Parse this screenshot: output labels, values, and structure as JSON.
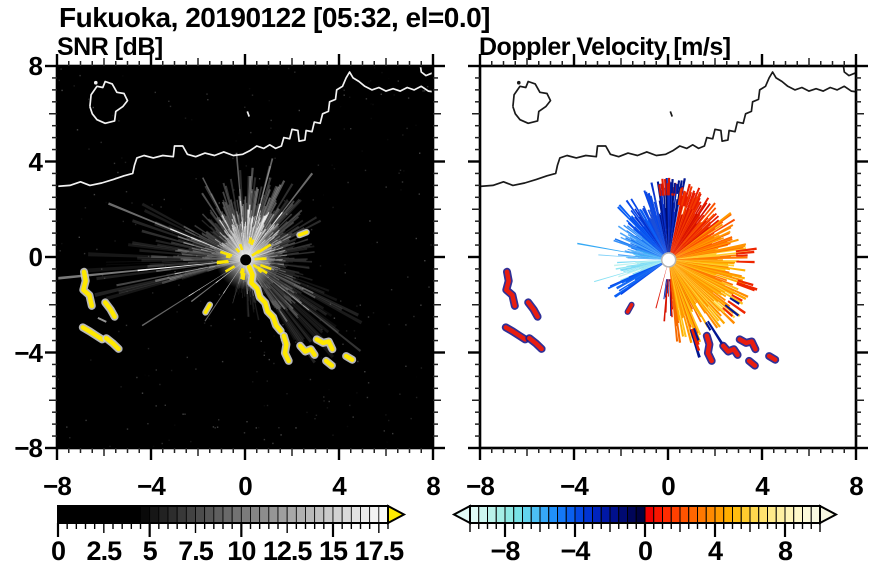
{
  "chart_data": {
    "type": "heatmap",
    "title": "Fukuoka, 20190122 [05:32, el=0.0]",
    "station": "Fukuoka",
    "date": "20190122",
    "time": "05:32",
    "elevation_label": "el=0.0",
    "x_range": [
      -8,
      8
    ],
    "y_range": [
      -8,
      8
    ],
    "axis_tick_values": [
      -8,
      -4,
      0,
      4,
      8
    ],
    "axis_tick_labels": [
      "−8",
      "−4",
      "0",
      "4",
      "8"
    ],
    "radar_center": [
      0.03,
      -0.12
    ],
    "panels": [
      {
        "key": "snr",
        "title": "SNR [dB]",
        "background": "#000000",
        "coast_color": "#f2f2f2",
        "colorbar": {
          "min": 0,
          "max": 18,
          "cell_width": 0.5,
          "tick_values": [
            0,
            2.5,
            5,
            7.5,
            10,
            12.5,
            15,
            17.5
          ],
          "tick_labels": [
            "0",
            "2.5",
            "5",
            "7.5",
            "10",
            "12.5",
            "15",
            "17.5"
          ],
          "style": "grayscale",
          "black_until": 4.5,
          "overflow_arrow_color": "#ffec00"
        }
      },
      {
        "key": "vel",
        "title": "Doppler Velocity [m/s]",
        "background": "#ffffff",
        "coast_color": "#1a1a1a",
        "colorbar": {
          "min": -10,
          "max": 10,
          "cell_width": 0.5,
          "tick_values": [
            -8,
            -4,
            0,
            4,
            8
          ],
          "tick_labels": [
            "−8",
            "−4",
            "0",
            "4",
            "8"
          ],
          "style": "diverging",
          "colors": [
            "#e0faf6",
            "#cdf6f0",
            "#baf2ea",
            "#a5eee6",
            "#8fe9e4",
            "#78e2e6",
            "#62d4ee",
            "#4cc0f4",
            "#36a8f8",
            "#2090fa",
            "#1478f6",
            "#0a60ee",
            "#0448e2",
            "#0134d2",
            "#0024be",
            "#0018a6",
            "#00108c",
            "#000a72",
            "#000558",
            "#000240",
            "#ee0000",
            "#f81600",
            "#ff2c00",
            "#ff4000",
            "#ff5400",
            "#ff6600",
            "#ff7800",
            "#ff8a00",
            "#ff9c00",
            "#ffae00",
            "#ffbe10",
            "#ffcc2e",
            "#ffd84e",
            "#ffe26e",
            "#ffea8a",
            "#fff0a2",
            "#fff5b8",
            "#fff9ca",
            "#fcfada",
            "#f8f8e0"
          ]
        }
      }
    ],
    "coastline": {
      "main": [
        [
          8.15,
          6.9
        ],
        [
          7.8,
          6.95
        ],
        [
          7.5,
          7.15
        ],
        [
          7.2,
          7.0
        ],
        [
          6.9,
          7.1
        ],
        [
          6.6,
          6.95
        ],
        [
          6.3,
          7.05
        ],
        [
          6.0,
          6.95
        ],
        [
          5.7,
          7.1
        ],
        [
          5.4,
          7.0
        ],
        [
          5.1,
          7.15
        ],
        [
          4.85,
          7.35
        ],
        [
          4.6,
          7.5
        ],
        [
          4.45,
          7.75
        ],
        [
          4.3,
          7.5
        ],
        [
          4.15,
          7.15
        ],
        [
          3.9,
          7.0
        ],
        [
          3.85,
          6.6
        ],
        [
          3.6,
          6.5
        ],
        [
          3.55,
          6.1
        ],
        [
          3.3,
          6.0
        ],
        [
          3.2,
          5.6
        ],
        [
          2.95,
          5.65
        ],
        [
          2.85,
          5.25
        ],
        [
          2.6,
          5.3
        ],
        [
          2.55,
          4.9
        ],
        [
          2.3,
          4.85
        ],
        [
          2.25,
          5.3
        ],
        [
          2.0,
          5.35
        ],
        [
          1.9,
          4.95
        ],
        [
          1.65,
          5.0
        ],
        [
          1.55,
          4.65
        ],
        [
          1.3,
          4.55
        ],
        [
          1.05,
          4.7
        ],
        [
          0.8,
          4.55
        ],
        [
          0.5,
          4.65
        ],
        [
          0.2,
          4.45
        ],
        [
          -0.1,
          4.3
        ],
        [
          -0.5,
          4.25
        ],
        [
          -0.9,
          4.4
        ],
        [
          -1.3,
          4.25
        ],
        [
          -1.7,
          4.35
        ],
        [
          -2.1,
          4.2
        ],
        [
          -2.45,
          4.3
        ],
        [
          -2.65,
          4.65
        ],
        [
          -3.0,
          4.65
        ],
        [
          -3.05,
          4.2
        ],
        [
          -3.5,
          4.25
        ],
        [
          -3.9,
          4.15
        ],
        [
          -4.3,
          4.25
        ],
        [
          -4.6,
          4.15
        ],
        [
          -4.7,
          3.85
        ],
        [
          -4.78,
          3.5
        ],
        [
          -5.15,
          3.4
        ],
        [
          -5.6,
          3.25
        ],
        [
          -6.1,
          3.1
        ],
        [
          -6.6,
          3.0
        ],
        [
          -7.0,
          3.15
        ],
        [
          -7.45,
          3.0
        ],
        [
          -8.15,
          2.95
        ]
      ],
      "island": [
        [
          -6.6,
          6.3
        ],
        [
          -6.55,
          6.8
        ],
        [
          -6.3,
          7.15
        ],
        [
          -6.05,
          7.1
        ],
        [
          -5.95,
          7.35
        ],
        [
          -5.65,
          7.25
        ],
        [
          -5.45,
          6.9
        ],
        [
          -5.15,
          6.85
        ],
        [
          -5.0,
          6.55
        ],
        [
          -5.2,
          6.3
        ],
        [
          -5.5,
          6.1
        ],
        [
          -5.55,
          5.7
        ],
        [
          -5.95,
          5.6
        ],
        [
          -6.3,
          5.75
        ],
        [
          -6.5,
          6.0
        ],
        [
          -6.6,
          6.3
        ]
      ],
      "ne_piers": [
        [
          7.45,
          8.1
        ],
        [
          7.5,
          7.75
        ],
        [
          7.7,
          7.6
        ],
        [
          7.95,
          7.7
        ],
        [
          8.1,
          7.55
        ]
      ],
      "islet": [
        -6.35,
        7.3
      ],
      "mark": [
        [
          0.1,
          6.1
        ],
        [
          0.18,
          5.88
        ]
      ]
    },
    "clutter": {
      "west_blobs": [
        [
          [
            -6.85,
            -0.62
          ],
          [
            -6.78,
            -1.0
          ],
          [
            -6.88,
            -1.38
          ],
          [
            -6.62,
            -1.6
          ],
          [
            -6.52,
            -2.05
          ]
        ],
        [
          [
            -5.95,
            -1.9
          ],
          [
            -5.72,
            -2.2
          ],
          [
            -5.55,
            -2.5
          ]
        ],
        [
          [
            -6.9,
            -2.95
          ],
          [
            -6.6,
            -3.12
          ],
          [
            -6.32,
            -3.3
          ],
          [
            -6.08,
            -3.45
          ]
        ],
        [
          [
            -5.9,
            -3.4
          ],
          [
            -5.62,
            -3.62
          ],
          [
            -5.38,
            -3.85
          ]
        ]
      ],
      "south_blobs": [
        [
          [
            1.65,
            -3.3
          ],
          [
            1.76,
            -3.66
          ],
          [
            1.7,
            -4.02
          ],
          [
            1.86,
            -4.35
          ]
        ],
        [
          [
            2.35,
            -3.72
          ],
          [
            2.56,
            -3.96
          ],
          [
            2.8,
            -3.86
          ],
          [
            2.96,
            -4.1
          ]
        ],
        [
          [
            3.05,
            -3.45
          ],
          [
            3.32,
            -3.6
          ],
          [
            3.56,
            -3.54
          ],
          [
            3.72,
            -3.86
          ]
        ],
        [
          [
            3.45,
            -4.35
          ],
          [
            3.7,
            -4.55
          ]
        ],
        [
          [
            4.3,
            -4.15
          ],
          [
            4.56,
            -4.3
          ]
        ]
      ],
      "coast_trail_snr": [
        [
          0.18,
          -0.42
        ],
        [
          0.32,
          -0.75
        ],
        [
          0.27,
          -1.08
        ],
        [
          0.52,
          -1.32
        ],
        [
          0.62,
          -1.68
        ],
        [
          0.86,
          -1.92
        ],
        [
          0.96,
          -2.28
        ],
        [
          1.2,
          -2.52
        ],
        [
          1.32,
          -2.86
        ],
        [
          1.52,
          -3.1
        ]
      ],
      "snr_dashes": [
        [
          [
            2.32,
            0.92
          ],
          [
            2.62,
            1.04
          ]
        ],
        [
          [
            -1.5,
            -2.0
          ],
          [
            -1.68,
            -2.32
          ]
        ]
      ],
      "snr_gray_dash": [
        [
          -6.26,
          -2.55
        ],
        [
          -5.9,
          -2.72
        ]
      ],
      "vel_dashes": [
        [
          [
            -1.55,
            -2.0
          ],
          [
            -1.72,
            -2.3
          ]
        ]
      ]
    },
    "snr_field": {
      "wedges": [
        {
          "a0": -110,
          "a1": -88,
          "rmin": 0.8,
          "rmax": 1.8,
          "op": 0.22
        },
        {
          "a0": -88,
          "a1": -58,
          "rmin": 1.2,
          "rmax": 2.6,
          "op": 0.34
        },
        {
          "a0": -58,
          "a1": -20,
          "rmin": 2.2,
          "rmax": 5.6,
          "op": 0.26
        },
        {
          "a0": -20,
          "a1": 18,
          "rmin": 1.5,
          "rmax": 3.0,
          "op": 0.38
        },
        {
          "a0": 18,
          "a1": 58,
          "rmin": 1.8,
          "rmax": 3.6,
          "op": 0.55
        },
        {
          "a0": 58,
          "a1": 96,
          "rmin": 2.2,
          "rmax": 4.3,
          "op": 0.75
        },
        {
          "a0": 96,
          "a1": 128,
          "rmin": 1.9,
          "rmax": 3.6,
          "op": 0.65
        },
        {
          "a0": 128,
          "a1": 152,
          "rmin": 1.6,
          "rmax": 3.0,
          "op": 0.5
        },
        {
          "a0": 152,
          "a1": 178,
          "rmin": 2.0,
          "rmax": 5.2,
          "op": 0.36
        },
        {
          "a0": 178,
          "a1": 197,
          "rmin": 2.6,
          "rmax": 7.2,
          "op": 0.3
        }
      ],
      "rays": [
        {
          "a": 158,
          "r": 6.3,
          "w": 0.9,
          "op": 0.85
        },
        {
          "a": 185.5,
          "r": 8.4,
          "w": 0.8,
          "op": 0.95
        },
        {
          "a": 191,
          "r": 5.6,
          "w": 0.9,
          "op": 0.55
        },
        {
          "a": 212,
          "r": 5.2,
          "w": 0.7,
          "op": 0.8
        },
        {
          "a": 217,
          "r": 2.9,
          "w": 1.1,
          "op": 0.9
        },
        {
          "a": 236,
          "r": 3.1,
          "w": 0.9,
          "op": 0.8
        },
        {
          "a": 253,
          "r": 1.9,
          "w": 1.0,
          "op": 0.45
        },
        {
          "a": -38,
          "r": 6.2,
          "w": 0.9,
          "op": 0.4
        },
        {
          "a": 52,
          "r": 4.6,
          "w": 1.2,
          "op": 0.85
        },
        {
          "a": 75,
          "r": 4.4,
          "w": 1.0,
          "op": 0.8
        },
        {
          "a": 95,
          "r": 4.5,
          "w": 1.0,
          "op": 0.75
        },
        {
          "a": 118,
          "r": 3.9,
          "w": 1.0,
          "op": 0.7
        }
      ],
      "dark_rays": [
        {
          "a": 188.3,
          "w": 1.3,
          "r": 8.5
        },
        {
          "a": 181.5,
          "w": 0.9,
          "r": 8.5
        }
      ]
    },
    "vel_field": {
      "wedges": [
        {
          "a0": 80,
          "a1": 103,
          "rmin": 1.9,
          "rmax": 3.5,
          "colors": [
            "#000d6e",
            "#001692",
            "#0423b4",
            "#0a33cc"
          ]
        },
        {
          "a0": 103,
          "a1": 140,
          "rmin": 1.7,
          "rmax": 3.2,
          "colors": [
            "#0330cf",
            "#0747e8",
            "#0b5ff5",
            "#1b4fd8"
          ]
        },
        {
          "a0": 140,
          "a1": 163,
          "rmin": 1.4,
          "rmax": 2.7,
          "colors": [
            "#1a75f2",
            "#348ff7",
            "#4fa6fa"
          ]
        },
        {
          "a0": 163,
          "a1": 178,
          "rmin": 1.0,
          "rmax": 2.2,
          "colors": [
            "#4fa6fa",
            "#35b9f5",
            "#6cc8f8"
          ]
        },
        {
          "a0": 183,
          "a1": 203,
          "rmin": 1.2,
          "rmax": 2.35,
          "colors": [
            "#a8ecf0",
            "#c2f3ee",
            "#7edcf6",
            "#93e6f2"
          ]
        },
        {
          "a0": 203,
          "a1": 216,
          "rmin": 1.6,
          "rmax": 2.9,
          "colors": [
            "#0b5ff5",
            "#0747e8",
            "#1b6cf0"
          ]
        },
        {
          "a0": 262,
          "a1": 276,
          "rmin": 0.9,
          "rmax": 2.7,
          "colors": [
            "#001692",
            "#d81400",
            "#0423b4"
          ],
          "sparse": 0.75
        },
        {
          "a0": 276,
          "a1": 305,
          "rmin": 1.9,
          "rmax": 3.9,
          "colors": [
            "#ff9800",
            "#ffaf00",
            "#f66a00",
            "#ffc41e"
          ]
        },
        {
          "a0": 305,
          "a1": 338,
          "rmin": 2.2,
          "rmax": 3.9,
          "colors": [
            "#ffa600",
            "#ff8c00",
            "#ffc01a",
            "#ffd742"
          ]
        },
        {
          "a0": 338,
          "a1": 372,
          "rmin": 2.0,
          "rmax": 3.5,
          "colors": [
            "#ffb200",
            "#ff9400",
            "#ffcb2b",
            "#ff7a00"
          ]
        },
        {
          "a0": 372,
          "a1": 398,
          "rmin": 1.9,
          "rmax": 3.3,
          "colors": [
            "#ff8200",
            "#ff6600",
            "#fc4a00",
            "#ff9a00"
          ]
        },
        {
          "a0": 398,
          "a1": 438,
          "rmin": 1.9,
          "rmax": 3.1,
          "colors": [
            "#f23800",
            "#e81c00",
            "#fa5200",
            "#d41000"
          ]
        },
        {
          "a0": 85,
          "a1": 100,
          "rmin": 3.0,
          "rmax": 3.6,
          "colors": [
            "#e81c00",
            "#d81400"
          ],
          "sparse": 0.5
        },
        {
          "a0": 72,
          "a1": 88,
          "rmin": 3.1,
          "rmax": 3.6,
          "colors": [
            "#001692"
          ],
          "sparse": 0.4
        },
        {
          "a0": 283,
          "a1": 303,
          "rmin": 3.4,
          "rmax": 4.3,
          "colors": [
            "#e81c00",
            "#001692"
          ],
          "sparse": 0.45
        },
        {
          "a0": 318,
          "a1": 345,
          "rmin": 3.4,
          "rmax": 4.0,
          "colors": [
            "#ee2600",
            "#001692"
          ],
          "sparse": 0.35
        },
        {
          "a0": 350,
          "a1": 368,
          "rmin": 3.2,
          "rmax": 3.8,
          "colors": [
            "#ee2600"
          ],
          "sparse": 0.4
        },
        {
          "a0": 60,
          "a1": 80,
          "rmin": 2.6,
          "rmax": 3.3,
          "colors": [
            "#e81c00",
            "#f23800"
          ],
          "sparse": 0.8
        }
      ],
      "rays": [
        {
          "a": 170,
          "r": 3.95,
          "w": 0.9,
          "color": "#35a9f5"
        },
        {
          "a": 176,
          "r": 3.0,
          "w": 0.8,
          "color": "#7ed0f8"
        },
        {
          "a": 196,
          "r": 3.3,
          "w": 0.8,
          "color": "#8ae2f4"
        },
        {
          "a": 255,
          "r": 2.1,
          "w": 1.4,
          "color": "#e02010"
        }
      ]
    },
    "colors": {
      "clutter_snr_core": "#ffe800",
      "clutter_snr_halo": "#cccccc",
      "clutter_vel_core": "#e81e10",
      "clutter_vel_halo": "#1a1a8c"
    }
  }
}
